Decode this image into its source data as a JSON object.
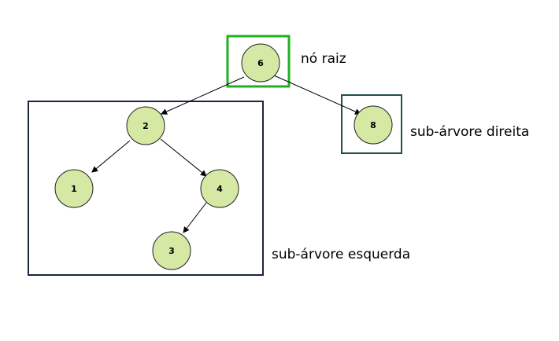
{
  "nodes": {
    "root": "6",
    "right": "8",
    "left_root": "2",
    "left_left": "1",
    "left_right": "4",
    "left_right_left": "3"
  },
  "captions": {
    "root": "nó raiz",
    "right_subtree": "sub-árvore direita",
    "left_subtree": "sub-árvore esquerda"
  },
  "colors": {
    "node_fill": "#d5e8a4",
    "root_box": "#20b020",
    "right_box": "#1f4f4f",
    "left_box": "#1b2440"
  }
}
